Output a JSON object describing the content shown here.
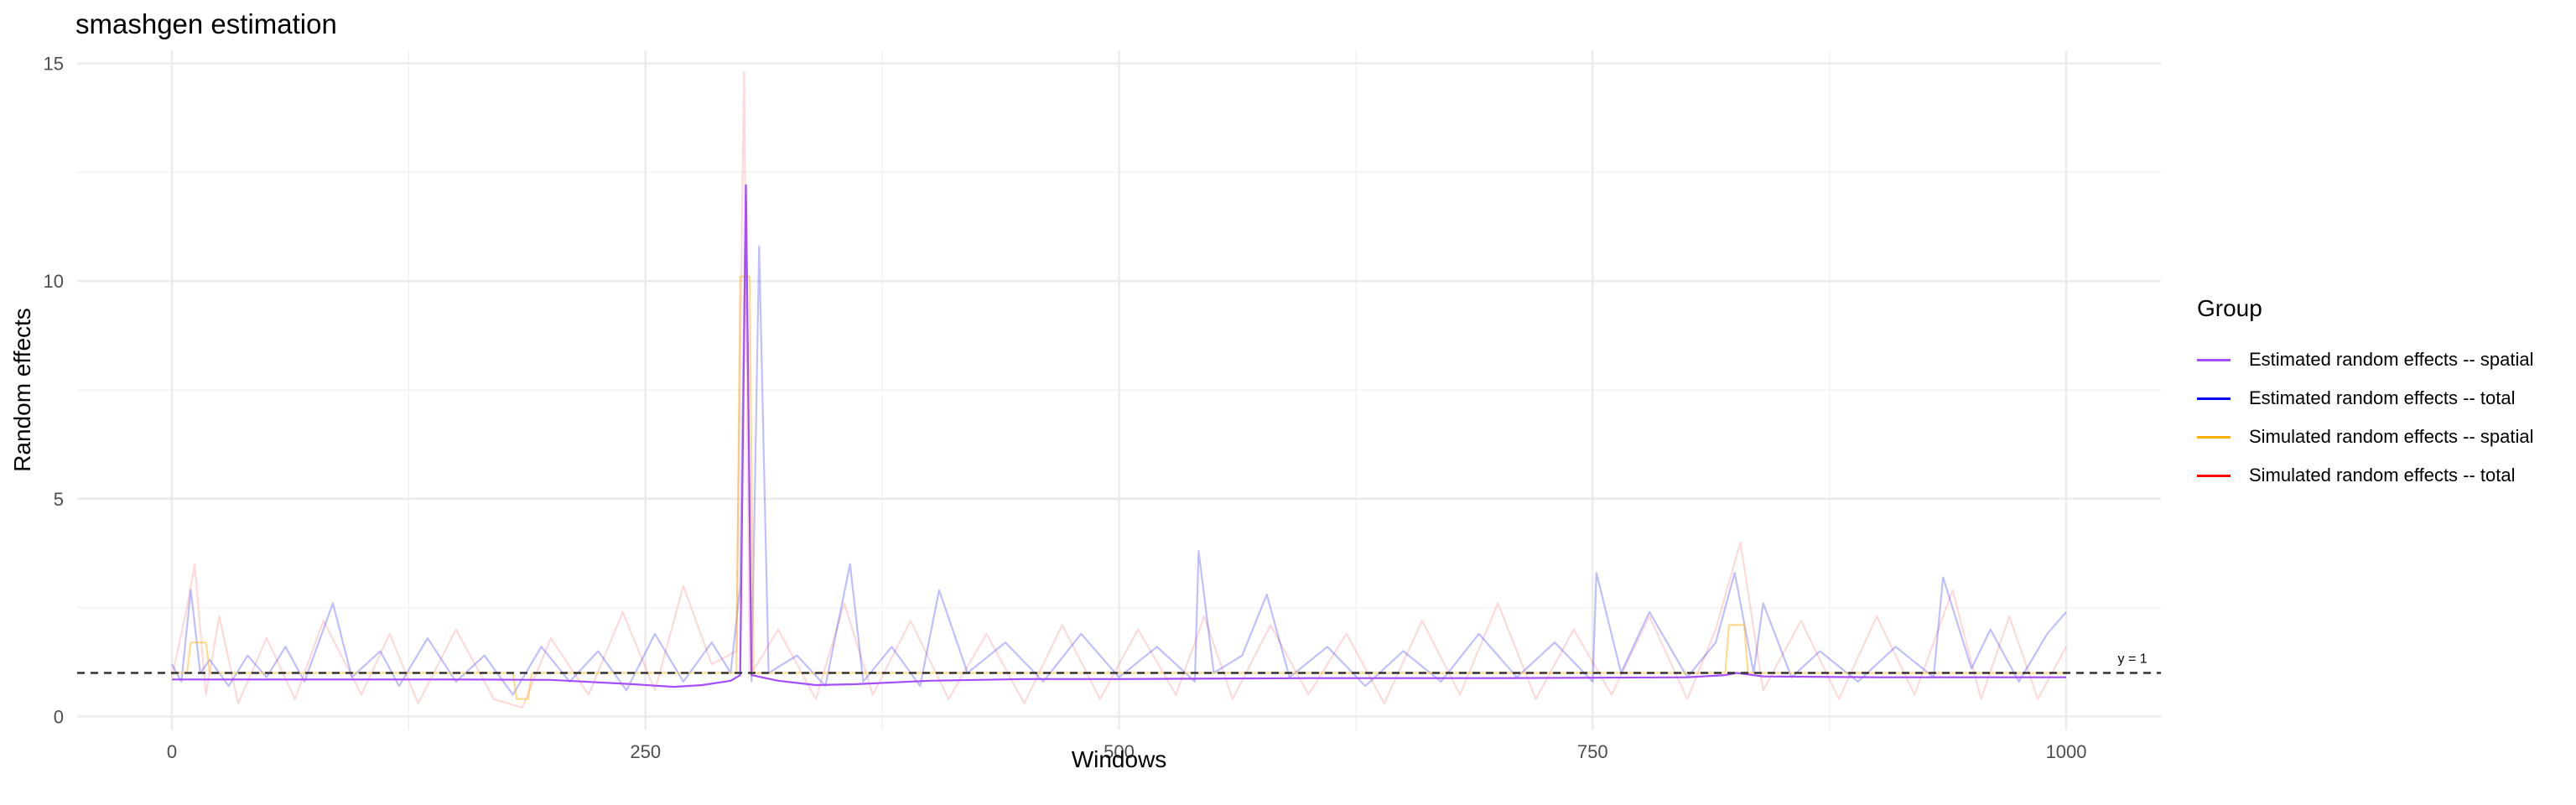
{
  "chart_data": {
    "type": "line",
    "title": "smashgen estimation",
    "xlabel": "Windows",
    "ylabel": "Random effects",
    "xlim": [
      -50,
      1050
    ],
    "ylim": [
      -0.3,
      15.3
    ],
    "x_ticks": [
      0,
      250,
      500,
      750,
      1000
    ],
    "y_ticks": [
      0,
      5,
      10,
      15
    ],
    "grid": true,
    "legend_title": "Group",
    "legend_position": "right",
    "reference_line": {
      "y": 1,
      "label": "y = 1",
      "style": "dashed",
      "color": "#333333"
    },
    "series": [
      {
        "name": "Estimated random effects -- spatial",
        "color": "#a64dff",
        "opacity": 1.0,
        "points": [
          [
            0,
            0.85
          ],
          [
            150,
            0.85
          ],
          [
            200,
            0.84
          ],
          [
            240,
            0.75
          ],
          [
            265,
            0.68
          ],
          [
            280,
            0.72
          ],
          [
            295,
            0.82
          ],
          [
            300,
            0.95
          ],
          [
            303,
            12.2
          ],
          [
            306,
            0.95
          ],
          [
            320,
            0.82
          ],
          [
            340,
            0.72
          ],
          [
            360,
            0.74
          ],
          [
            400,
            0.82
          ],
          [
            450,
            0.86
          ],
          [
            500,
            0.86
          ],
          [
            600,
            0.88
          ],
          [
            700,
            0.88
          ],
          [
            800,
            0.9
          ],
          [
            820,
            0.95
          ],
          [
            826,
            1.0
          ],
          [
            840,
            0.92
          ],
          [
            900,
            0.9
          ],
          [
            1000,
            0.9
          ]
        ]
      },
      {
        "name": "Estimated random effects -- total",
        "color": "#0000ff",
        "opacity": 0.25,
        "points": [
          [
            0,
            1.2
          ],
          [
            5,
            0.8
          ],
          [
            10,
            2.9
          ],
          [
            15,
            1.0
          ],
          [
            20,
            1.3
          ],
          [
            30,
            0.7
          ],
          [
            40,
            1.4
          ],
          [
            50,
            0.9
          ],
          [
            60,
            1.6
          ],
          [
            70,
            0.8
          ],
          [
            85,
            2.6
          ],
          [
            95,
            0.9
          ],
          [
            110,
            1.5
          ],
          [
            120,
            0.7
          ],
          [
            135,
            1.8
          ],
          [
            150,
            0.8
          ],
          [
            165,
            1.4
          ],
          [
            180,
            0.5
          ],
          [
            195,
            1.6
          ],
          [
            210,
            0.8
          ],
          [
            225,
            1.5
          ],
          [
            240,
            0.6
          ],
          [
            255,
            1.9
          ],
          [
            270,
            0.8
          ],
          [
            285,
            1.7
          ],
          [
            295,
            1.0
          ],
          [
            300,
            3.0
          ],
          [
            303,
            12.2
          ],
          [
            306,
            0.8
          ],
          [
            310,
            10.8
          ],
          [
            315,
            1.0
          ],
          [
            330,
            1.4
          ],
          [
            345,
            0.7
          ],
          [
            358,
            3.5
          ],
          [
            365,
            0.8
          ],
          [
            380,
            1.6
          ],
          [
            395,
            0.7
          ],
          [
            405,
            2.9
          ],
          [
            420,
            1.0
          ],
          [
            440,
            1.7
          ],
          [
            460,
            0.8
          ],
          [
            480,
            1.9
          ],
          [
            500,
            0.9
          ],
          [
            520,
            1.6
          ],
          [
            540,
            0.8
          ],
          [
            542,
            3.8
          ],
          [
            550,
            1.0
          ],
          [
            565,
            1.4
          ],
          [
            578,
            2.8
          ],
          [
            590,
            0.9
          ],
          [
            610,
            1.6
          ],
          [
            630,
            0.7
          ],
          [
            650,
            1.5
          ],
          [
            670,
            0.8
          ],
          [
            690,
            1.9
          ],
          [
            710,
            0.9
          ],
          [
            730,
            1.7
          ],
          [
            750,
            0.8
          ],
          [
            752,
            3.3
          ],
          [
            765,
            1.0
          ],
          [
            780,
            2.4
          ],
          [
            800,
            0.9
          ],
          [
            815,
            1.7
          ],
          [
            825,
            3.3
          ],
          [
            835,
            1.0
          ],
          [
            840,
            2.6
          ],
          [
            855,
            0.9
          ],
          [
            870,
            1.5
          ],
          [
            890,
            0.8
          ],
          [
            910,
            1.6
          ],
          [
            930,
            0.9
          ],
          [
            935,
            3.2
          ],
          [
            950,
            1.1
          ],
          [
            960,
            2.0
          ],
          [
            975,
            0.8
          ],
          [
            990,
            1.9
          ],
          [
            1000,
            2.4
          ]
        ]
      },
      {
        "name": "Simulated random effects -- spatial",
        "color": "#ffb000",
        "opacity": 0.45,
        "points": [
          [
            0,
            1.0
          ],
          [
            8,
            1.0
          ],
          [
            10,
            1.7
          ],
          [
            18,
            1.7
          ],
          [
            20,
            1.0
          ],
          [
            180,
            1.0
          ],
          [
            182,
            0.4
          ],
          [
            188,
            0.4
          ],
          [
            190,
            1.0
          ],
          [
            298,
            1.0
          ],
          [
            300,
            10.1
          ],
          [
            305,
            10.1
          ],
          [
            307,
            1.0
          ],
          [
            820,
            1.0
          ],
          [
            822,
            2.1
          ],
          [
            830,
            2.1
          ],
          [
            832,
            1.0
          ],
          [
            1000,
            1.0
          ]
        ]
      },
      {
        "name": "Simulated random effects -- total",
        "color": "#ff0000",
        "opacity": 0.15,
        "points": [
          [
            0,
            0.9
          ],
          [
            8,
            2.5
          ],
          [
            12,
            3.5
          ],
          [
            18,
            0.5
          ],
          [
            25,
            2.3
          ],
          [
            35,
            0.3
          ],
          [
            50,
            1.8
          ],
          [
            65,
            0.4
          ],
          [
            80,
            2.2
          ],
          [
            100,
            0.5
          ],
          [
            115,
            1.9
          ],
          [
            130,
            0.3
          ],
          [
            150,
            2.0
          ],
          [
            170,
            0.4
          ],
          [
            185,
            0.2
          ],
          [
            200,
            1.8
          ],
          [
            220,
            0.5
          ],
          [
            238,
            2.4
          ],
          [
            255,
            0.6
          ],
          [
            270,
            3.0
          ],
          [
            285,
            1.2
          ],
          [
            298,
            1.5
          ],
          [
            302,
            14.8
          ],
          [
            305,
            1.0
          ],
          [
            309,
            1.2
          ],
          [
            320,
            2.0
          ],
          [
            340,
            0.4
          ],
          [
            355,
            2.6
          ],
          [
            370,
            0.5
          ],
          [
            390,
            2.2
          ],
          [
            410,
            0.4
          ],
          [
            430,
            1.9
          ],
          [
            450,
            0.3
          ],
          [
            470,
            2.1
          ],
          [
            490,
            0.4
          ],
          [
            510,
            2.0
          ],
          [
            530,
            0.5
          ],
          [
            545,
            2.3
          ],
          [
            560,
            0.4
          ],
          [
            580,
            2.1
          ],
          [
            600,
            0.5
          ],
          [
            620,
            1.9
          ],
          [
            640,
            0.3
          ],
          [
            660,
            2.2
          ],
          [
            680,
            0.5
          ],
          [
            700,
            2.6
          ],
          [
            720,
            0.4
          ],
          [
            740,
            2.0
          ],
          [
            760,
            0.5
          ],
          [
            780,
            2.3
          ],
          [
            800,
            0.4
          ],
          [
            815,
            2.0
          ],
          [
            828,
            4.0
          ],
          [
            840,
            0.6
          ],
          [
            860,
            2.2
          ],
          [
            880,
            0.4
          ],
          [
            900,
            2.3
          ],
          [
            920,
            0.5
          ],
          [
            940,
            2.9
          ],
          [
            955,
            0.4
          ],
          [
            970,
            2.3
          ],
          [
            985,
            0.4
          ],
          [
            1000,
            1.6
          ]
        ]
      }
    ]
  }
}
